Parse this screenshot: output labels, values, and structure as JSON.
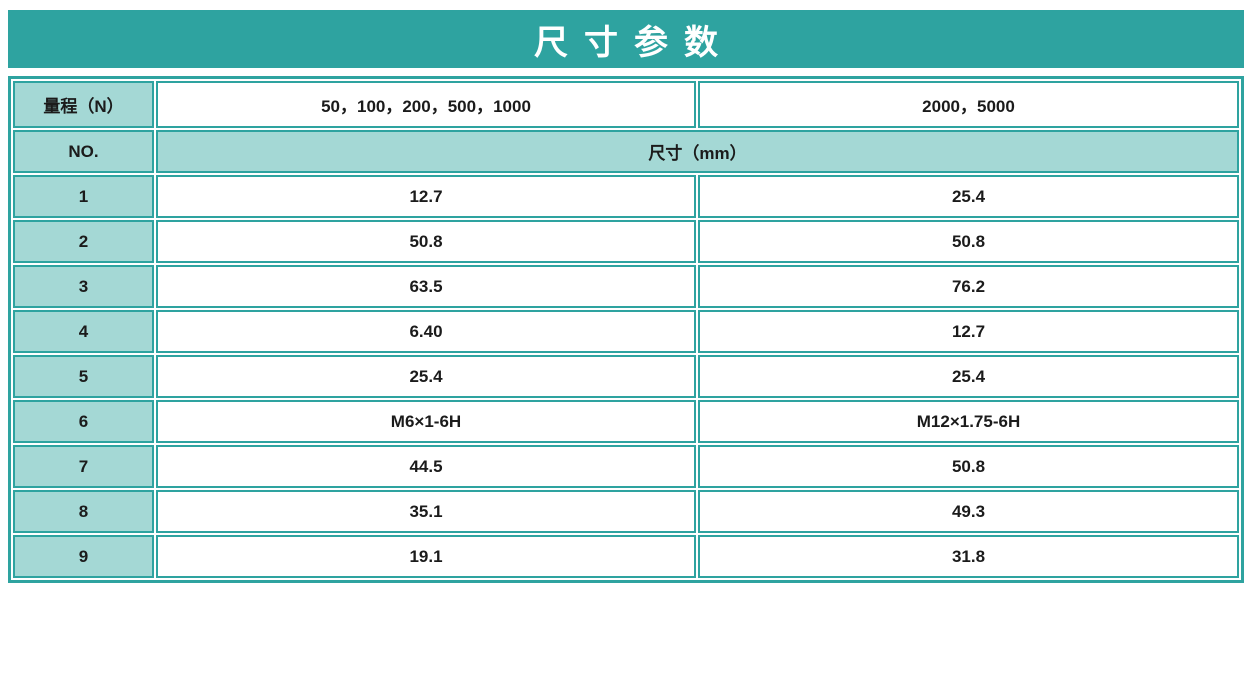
{
  "colors": {
    "teal": "#2ea3a0",
    "light_teal": "#a4d8d5",
    "title_text": "#ffffff",
    "cell_text": "#1b1b1b"
  },
  "header": {
    "title": "尺寸参数"
  },
  "table": {
    "range_row": {
      "label": "量程（N）",
      "range_a": "50，100，200，500，1000",
      "range_b": "2000，5000"
    },
    "no_row": {
      "label": "NO.",
      "dimension_label": "尺寸（mm）"
    },
    "rows": [
      {
        "no": "1",
        "dim_a": "12.7",
        "dim_b": "25.4"
      },
      {
        "no": "2",
        "dim_a": "50.8",
        "dim_b": "50.8"
      },
      {
        "no": "3",
        "dim_a": "63.5",
        "dim_b": "76.2"
      },
      {
        "no": "4",
        "dim_a": "6.40",
        "dim_b": "12.7"
      },
      {
        "no": "5",
        "dim_a": "25.4",
        "dim_b": "25.4"
      },
      {
        "no": "6",
        "dim_a": "M6×1-6H",
        "dim_b": "M12×1.75-6H"
      },
      {
        "no": "7",
        "dim_a": "44.5",
        "dim_b": "50.8"
      },
      {
        "no": "8",
        "dim_a": "35.1",
        "dim_b": "49.3"
      },
      {
        "no": "9",
        "dim_a": "19.1",
        "dim_b": "31.8"
      }
    ]
  }
}
